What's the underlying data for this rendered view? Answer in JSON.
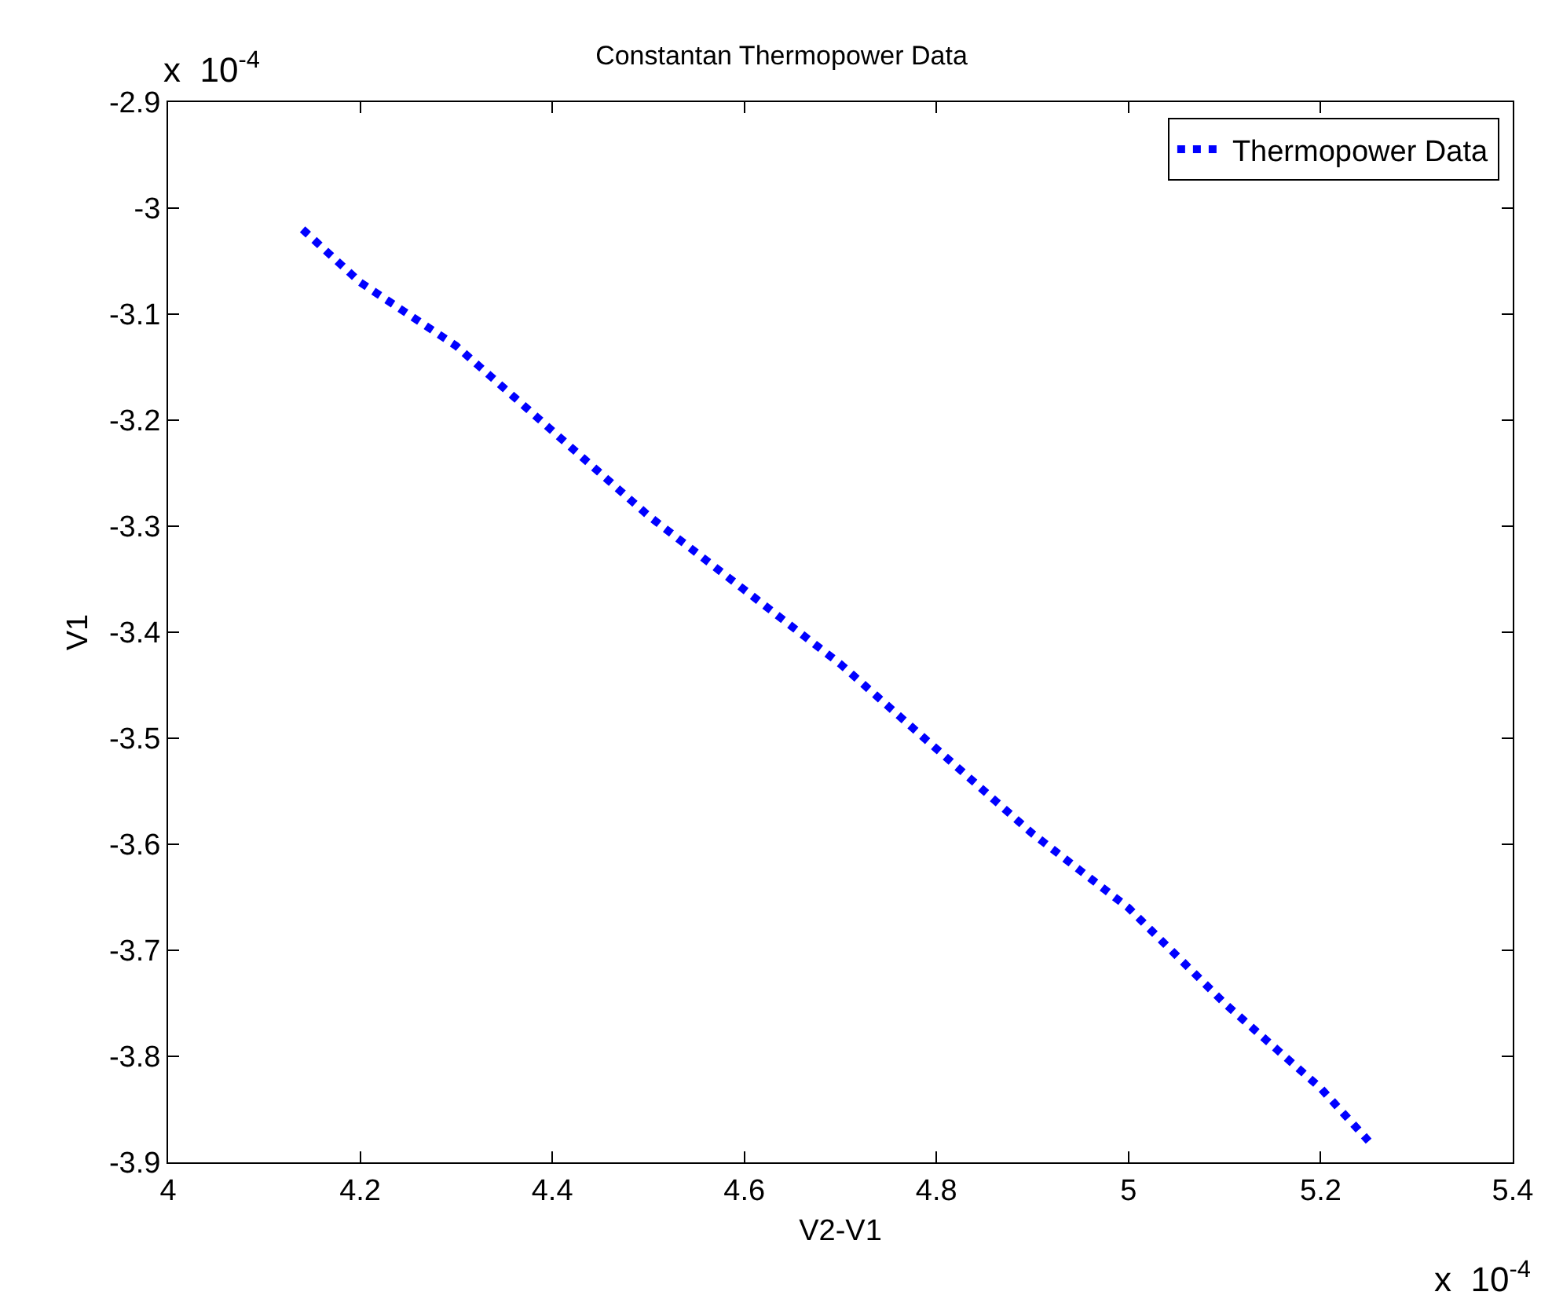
{
  "chart_data": {
    "type": "line",
    "title": "Constantan Thermopower Data",
    "xlabel": "V2-V1",
    "ylabel": "V1",
    "annotations": [
      "x  10$^{-4}$",
      "x  10$^{-4}$"
    ],
    "x": [
      4.14,
      4.2,
      4.3,
      4.4,
      4.5,
      4.6,
      4.7,
      4.8,
      4.9,
      5.0,
      5.1,
      5.2,
      5.25
    ],
    "series": [
      {
        "name": "Thermopower Data",
        "color": "#0000ff",
        "values": [
          -3.02,
          -3.07,
          -3.13,
          -3.21,
          -3.29,
          -3.36,
          -3.43,
          -3.51,
          -3.59,
          -3.66,
          -3.75,
          -3.83,
          -3.88
        ]
      }
    ],
    "xlim": [
      4,
      5.4
    ],
    "xticks": [
      4,
      4.2,
      4.4,
      4.6,
      4.8,
      5,
      5.2,
      5.4
    ],
    "ylim": [
      -3.9,
      -2.9
    ],
    "yticks": [
      -2.9,
      -3,
      -3.1,
      -3.2,
      -3.3,
      -3.4,
      -3.5,
      -3.6,
      -3.7,
      -3.8,
      -3.9
    ],
    "legend": "top right",
    "line_style": "dotted",
    "marker": "none"
  }
}
